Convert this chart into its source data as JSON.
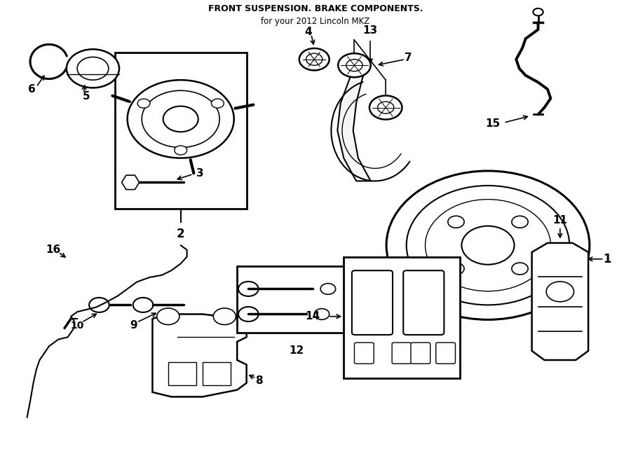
{
  "title": "FRONT SUSPENSION. BRAKE COMPONENTS.",
  "subtitle": "for your 2012 Lincoln MKZ",
  "bg_color": "#ffffff",
  "line_color": "#000000",
  "fig_width": 9.0,
  "fig_height": 6.61
}
